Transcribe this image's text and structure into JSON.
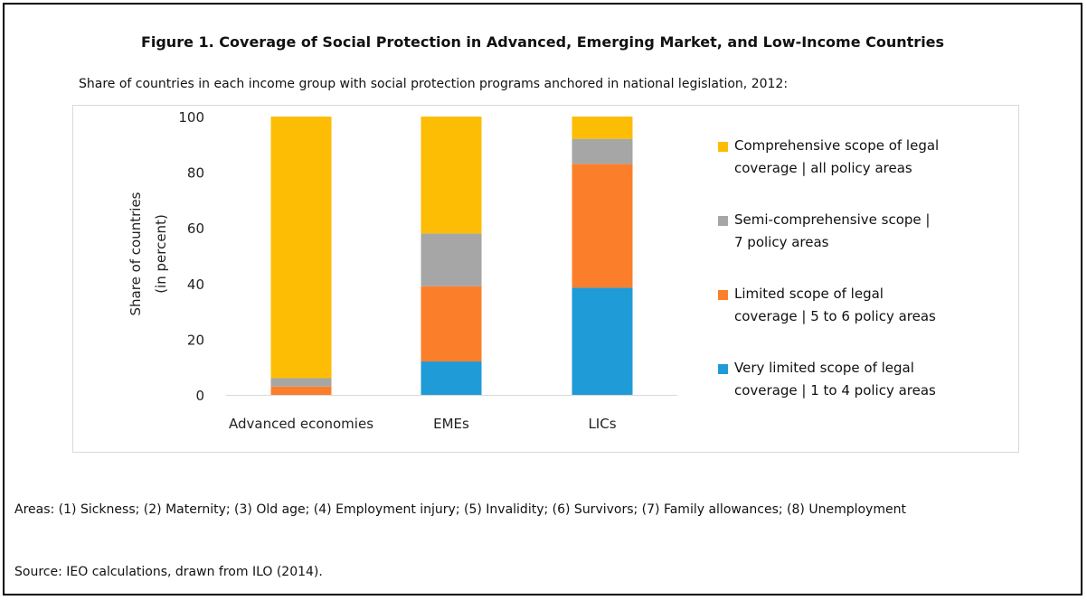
{
  "figure": {
    "title": "Figure 1. Coverage of Social Protection in Advanced, Emerging Market, and Low-Income Countries",
    "subtitle": "Share of countries in each income group with social protection programs anchored in national legislation, 2012:",
    "areas_note": "Areas: (1) Sickness; (2) Maternity; (3) Old age; (4) Employment injury; (5) Invalidity; (6) Survivors; (7) Family allowances; (8) Unemployment",
    "source_note": "Source: IEO calculations, drawn from ILO (2014)."
  },
  "chart_data": {
    "type": "bar",
    "stacked": true,
    "title": "",
    "xlabel": "",
    "ylabel_lines": [
      "Share of countries",
      "(in percent)"
    ],
    "ylim": [
      0,
      100
    ],
    "yticks": [
      0,
      20,
      40,
      60,
      80,
      100
    ],
    "grid": false,
    "legend_position": "right",
    "categories": [
      "Advanced economies",
      "EMEs",
      "LICs"
    ],
    "series": [
      {
        "name": "Very limited scope of legal coverage | 1 to 4 policy areas",
        "color": "#1f9bd7",
        "values": [
          0,
          12,
          38.5
        ]
      },
      {
        "name": "Limited scope of legal coverage | 5 to 6 policy areas",
        "color": "#fb7f2b",
        "values": [
          3,
          27,
          44.5
        ]
      },
      {
        "name": "Semi-comprehensive scope | 7 policy areas",
        "color": "#a6a6a6",
        "values": [
          3,
          19,
          9
        ]
      },
      {
        "name": "Comprehensive scope of legal coverage | all policy areas",
        "color": "#fdbd05",
        "values": [
          94,
          42,
          8
        ]
      }
    ],
    "legend_lines": [
      [
        "Comprehensive scope of legal",
        "coverage | all policy areas"
      ],
      [
        "Semi-comprehensive scope |",
        "7 policy areas"
      ],
      [
        "Limited scope of legal",
        "coverage | 5 to 6 policy areas"
      ],
      [
        "Very limited scope of legal",
        "coverage | 1 to 4 policy areas"
      ]
    ]
  }
}
